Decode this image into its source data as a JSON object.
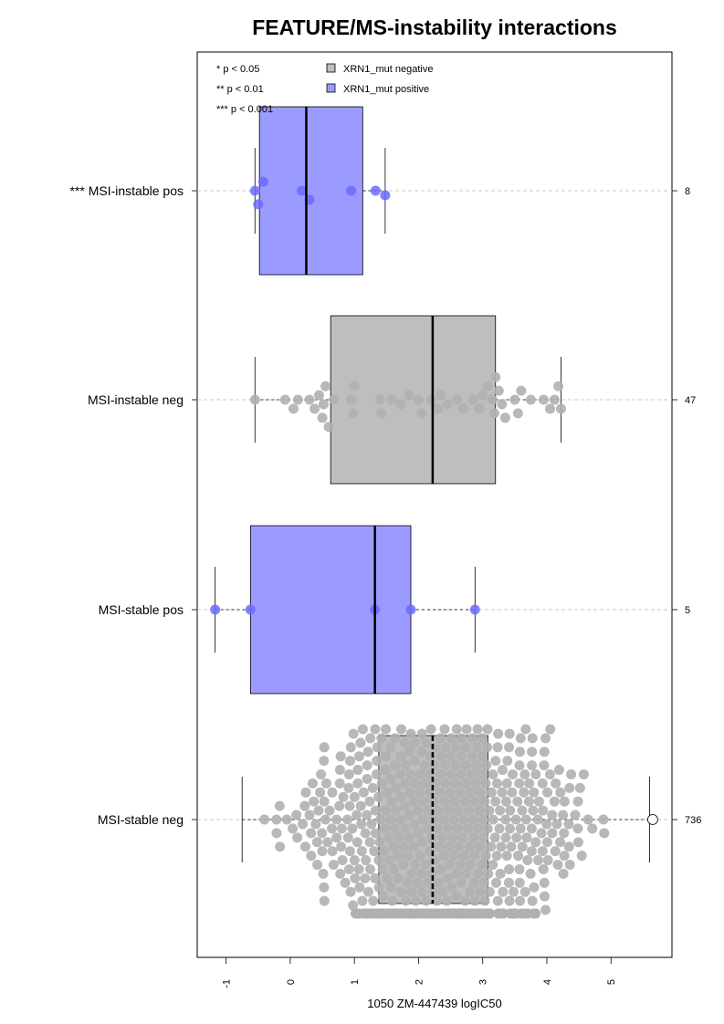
{
  "chart_data": {
    "type": "boxplot",
    "title": "FEATURE/MS-instability interactions",
    "xlabel": "1050 ZM-447439 logIC50",
    "xlim": [
      -1.45,
      5.95
    ],
    "x_ticks": [
      -1,
      0,
      1,
      2,
      3,
      4,
      5
    ],
    "x_tick_labels": [
      "-1",
      "0",
      "1",
      "2",
      "3",
      "4",
      "5"
    ],
    "grid": "dashed horizontal line through each group",
    "colors": {
      "negative": "#bebebe",
      "positive": "#9b9bff",
      "negative_points": "#b0b0b0",
      "positive_points": "#6b6bff",
      "gridline": "#c8c8c8"
    },
    "significance_legend": [
      "* p < 0.05",
      "** p < 0.01",
      "*** p < 0.001"
    ],
    "legend": [
      {
        "label": "XRN1_mut negative",
        "color": "#bebebe"
      },
      {
        "label": "XRN1_mut positive",
        "color": "#9b9bff"
      }
    ],
    "groups": [
      {
        "label": "*** MSI-instable pos",
        "count_label": "8",
        "status": "positive",
        "whisker_low": -0.55,
        "q1": -0.48,
        "median": 0.25,
        "q3": 1.13,
        "whisker_high": 1.48,
        "points": [
          -0.55,
          -0.5,
          -0.42,
          0.18,
          0.3,
          0.95,
          1.33,
          1.48
        ]
      },
      {
        "label": "MSI-instable neg",
        "count_label": "47",
        "status": "negative",
        "whisker_low": -0.55,
        "q1": 0.63,
        "median": 2.22,
        "q3": 3.2,
        "whisker_high": 4.22,
        "points": [
          -0.55,
          -0.08,
          0.05,
          0.12,
          0.3,
          0.38,
          0.45,
          0.5,
          0.52,
          0.55,
          0.6,
          0.68,
          0.95,
          0.98,
          1.0,
          1.4,
          1.42,
          1.58,
          1.72,
          1.85,
          2.0,
          2.05,
          2.2,
          2.3,
          2.35,
          2.45,
          2.6,
          2.7,
          2.85,
          2.95,
          3.0,
          3.08,
          3.15,
          3.18,
          3.2,
          3.25,
          3.3,
          3.35,
          3.5,
          3.55,
          3.6,
          3.75,
          3.95,
          4.05,
          4.12,
          4.18,
          4.22
        ]
      },
      {
        "label": "MSI-stable pos",
        "count_label": "5",
        "status": "positive",
        "whisker_low": -1.17,
        "q1": -0.62,
        "median": 1.32,
        "q3": 1.88,
        "whisker_high": 2.88,
        "points": [
          -1.17,
          -0.62,
          1.32,
          1.88,
          2.88
        ]
      },
      {
        "label": "MSI-stable neg",
        "count_label": "736",
        "status": "negative",
        "whisker_low": -0.75,
        "q1": 1.38,
        "median": 2.22,
        "q3": 3.08,
        "whisker_high": 5.6,
        "outliers": [
          5.65
        ],
        "n": 736
      }
    ]
  }
}
